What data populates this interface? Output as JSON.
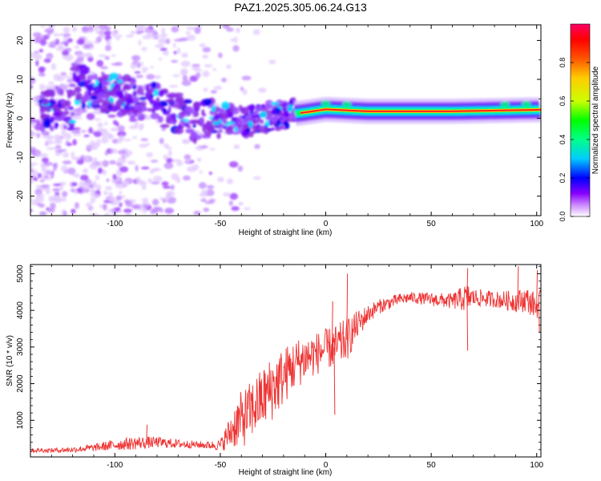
{
  "figure": {
    "title": "PAZ1.2025.305.06.24.G13"
  },
  "chart_data": [
    {
      "type": "heatmap",
      "title": "PAZ1.2025.305.06.24.G13",
      "xlabel": "Height of straight line (km)",
      "ylabel": "Frequency (Hz)",
      "xlim": [
        -140,
        102
      ],
      "ylim": [
        -25,
        24
      ],
      "xticks": [
        -100,
        -50,
        0,
        50,
        100
      ],
      "yticks": [
        -20,
        -10,
        0,
        10,
        20
      ],
      "tick_labels_x": [
        "-100",
        "-50",
        "0",
        "50",
        "100"
      ],
      "tick_labels_y": [
        "-20",
        "-10",
        "0",
        "10",
        "20"
      ],
      "colorbar": {
        "label": "Normalized spectral amplitude",
        "range": [
          0,
          1
        ],
        "ticks": [
          0.0,
          0.2,
          0.4,
          0.6,
          0.8
        ],
        "tick_labels": [
          "0.0",
          "0.2",
          "0.4",
          "0.6",
          "0.8"
        ],
        "colormap": [
          "#ffffff",
          "#cc88ff",
          "#8800ff",
          "#0000ff",
          "#00ccff",
          "#00ff88",
          "#00ff00",
          "#ccff00",
          "#ffcc00",
          "#ff5500",
          "#ff0000",
          "#ff0066"
        ]
      },
      "ridge": [
        {
          "x": -120,
          "f": 9
        },
        {
          "x": -100,
          "f": 6
        },
        {
          "x": -80,
          "f": 4
        },
        {
          "x": -62,
          "f": -1
        },
        {
          "x": -50,
          "f": 0.5
        },
        {
          "x": -38,
          "f": -1
        },
        {
          "x": -25,
          "f": 0.5
        },
        {
          "x": -10,
          "f": 1.5
        },
        {
          "x": 0,
          "f": 2.3
        },
        {
          "x": 20,
          "f": 1.8
        },
        {
          "x": 60,
          "f": 1.8
        },
        {
          "x": 102,
          "f": 2.2
        }
      ],
      "ridge_color": "#ff2222"
    },
    {
      "type": "line",
      "title": "",
      "xlabel": "Height of straight line (km)",
      "ylabel": "SNR (10 * v/v)",
      "xlim": [
        -140,
        102
      ],
      "ylim": [
        0,
        5250
      ],
      "xticks": [
        -100,
        -50,
        0,
        50,
        100
      ],
      "yticks": [
        1000,
        2000,
        3000,
        4000,
        5000
      ],
      "tick_labels_x": [
        "-100",
        "-50",
        "0",
        "50",
        "100"
      ],
      "tick_labels_y": [
        "1000",
        "2000",
        "3000",
        "4000",
        "5000"
      ],
      "series_color": "#ee3333",
      "series": [
        {
          "name": "SNR",
          "x": [
            -140,
            -130,
            -120,
            -110,
            -100,
            -90,
            -80,
            -70,
            -60,
            -55,
            -50,
            -45,
            -42,
            -40,
            -35,
            -30,
            -25,
            -20,
            -15,
            -10,
            -5,
            0,
            5,
            10,
            15,
            20,
            25,
            30,
            35,
            40,
            50,
            60,
            67,
            70,
            80,
            90,
            95,
            100,
            102
          ],
          "y": [
            180,
            180,
            200,
            250,
            330,
            380,
            400,
            360,
            330,
            320,
            320,
            700,
            950,
            1000,
            1300,
            1600,
            1900,
            2200,
            2500,
            2700,
            2800,
            2950,
            3000,
            3200,
            3600,
            3900,
            4100,
            4200,
            4300,
            4350,
            4300,
            4250,
            4350,
            4350,
            4300,
            4250,
            4300,
            4100,
            4300
          ],
          "amp": [
            60,
            60,
            80,
            100,
            150,
            180,
            150,
            120,
            100,
            110,
            150,
            500,
            700,
            800,
            800,
            850,
            900,
            800,
            700,
            650,
            600,
            550,
            600,
            600,
            400,
            250,
            200,
            180,
            160,
            150,
            180,
            220,
            400,
            250,
            220,
            300,
            350,
            350,
            300
          ]
        }
      ],
      "spikes": [
        {
          "x": -85,
          "y": 880
        },
        {
          "x": 10,
          "y": 5000
        },
        {
          "x": 3,
          "y": 4250
        },
        {
          "x": 4,
          "y": 1150
        },
        {
          "x": 67,
          "y": 5150
        },
        {
          "x": 67,
          "y": 2900
        },
        {
          "x": 91,
          "y": 5200
        },
        {
          "x": 100,
          "y": 5100
        },
        {
          "x": 101,
          "y": 3400
        }
      ]
    }
  ]
}
